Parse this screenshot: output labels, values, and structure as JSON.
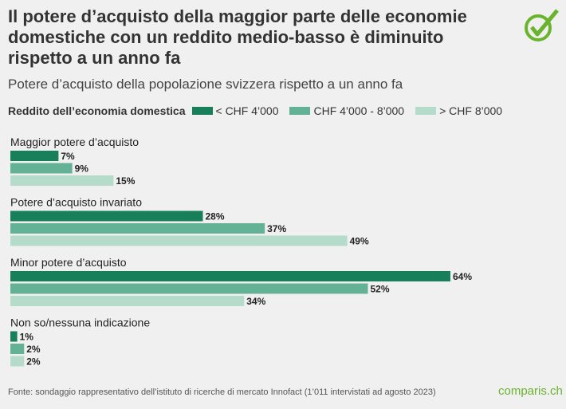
{
  "title": "Il potere d’acquisto della maggior parte delle economie domestiche con un reddito medio-basso è diminuito rispetto a un anno fa",
  "subtitle": "Potere d’acquisto della popolazione svizzera rispetto a un anno fa",
  "source": "Fonte: sondaggio rappresentativo dell’istituto di ricerche di mercato Innofact (1’011 intervistati ad agosto 2023)",
  "brand": "comparis.ch",
  "chart_data": {
    "type": "bar",
    "orientation": "horizontal",
    "legend_title": "Reddito dell’economia domestica",
    "legend_placement": "top",
    "categories": [
      "Maggior potere d’acquisto",
      "Potere d’acquisto invariato",
      "Minor potere d’acquisto",
      "Non so/nessuna indicazione"
    ],
    "series": [
      {
        "name": "< CHF 4’000",
        "color": "#17805a",
        "values": [
          7,
          28,
          64,
          1
        ]
      },
      {
        "name": "CHF 4’000 - 8’000",
        "color": "#63b296",
        "values": [
          9,
          37,
          52,
          2
        ]
      },
      {
        "name": "> CHF 8’000",
        "color": "#b5dccb",
        "values": [
          15,
          49,
          34,
          2
        ]
      }
    ],
    "unit": "%",
    "grid": false
  }
}
